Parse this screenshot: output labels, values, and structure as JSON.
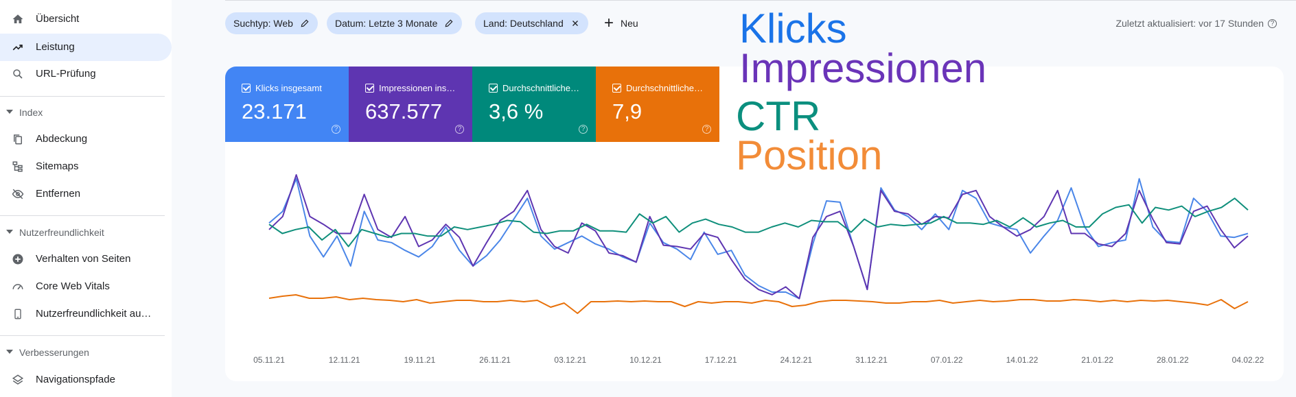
{
  "sidebar": {
    "items": [
      {
        "label": "Übersicht",
        "icon": "home-icon"
      },
      {
        "label": "Leistung",
        "icon": "trending-icon",
        "active": true
      },
      {
        "label": "URL-Prüfung",
        "icon": "search-icon"
      }
    ],
    "sections": [
      {
        "title": "Index",
        "items": [
          {
            "label": "Abdeckung",
            "icon": "copy-icon"
          },
          {
            "label": "Sitemaps",
            "icon": "sitemap-icon"
          },
          {
            "label": "Entfernen",
            "icon": "eye-off-icon"
          }
        ]
      },
      {
        "title": "Nutzerfreundlichkeit",
        "items": [
          {
            "label": "Verhalten von Seiten",
            "icon": "plus-circle-icon"
          },
          {
            "label": "Core Web Vitals",
            "icon": "gauge-icon"
          },
          {
            "label": "Nutzerfreundlichkeit au…",
            "icon": "smartphone-icon"
          }
        ]
      },
      {
        "title": "Verbesserungen",
        "items": [
          {
            "label": "Navigationspfade",
            "icon": "layers-icon"
          }
        ]
      }
    ]
  },
  "filters": [
    {
      "label": "Suchtyp: Web",
      "icon": "pencil-icon"
    },
    {
      "label": "Datum: Letzte 3 Monate",
      "icon": "pencil-icon"
    },
    {
      "label": "Land: Deutschland",
      "icon": "close-icon"
    }
  ],
  "new_label": "Neu",
  "updated_text": "Zuletzt aktualisiert: vor 17 Stunden",
  "metrics": [
    {
      "label": "Klicks insgesamt",
      "value": "23.171",
      "color": "#4285f4"
    },
    {
      "label": "Impressionen ins…",
      "value": "637.577",
      "color": "#5e35b1"
    },
    {
      "label": "Durchschnittliche…",
      "value": "3,6 %",
      "color": "#00897b"
    },
    {
      "label": "Durchschnittliche…",
      "value": "7,9",
      "color": "#e8710a"
    }
  ],
  "legend_overlay": {
    "clicks": "Klicks",
    "impressions": "Impressionen",
    "ctr": "CTR",
    "position": "Position"
  },
  "chart_data": {
    "type": "line",
    "x_ticks": [
      "05.11.21",
      "12.11.21",
      "19.11.21",
      "26.11.21",
      "03.12.21",
      "10.12.21",
      "17.12.21",
      "24.12.21",
      "31.12.21",
      "07.01.22",
      "14.01.22",
      "21.01.22",
      "28.01.22",
      "04.02.22"
    ],
    "series": [
      {
        "name": "Klicks",
        "color": "#4a86e8",
        "values": [
          63,
          72,
          97,
          53,
          37,
          53,
          30,
          72,
          50,
          48,
          42,
          37,
          45,
          60,
          42,
          30,
          38,
          50,
          66,
          82,
          53,
          43,
          48,
          53,
          47,
          43,
          37,
          33,
          63,
          48,
          43,
          35,
          56,
          39,
          42,
          23,
          15,
          10,
          10,
          5,
          47,
          80,
          79,
          45,
          12,
          90,
          73,
          68,
          58,
          70,
          58,
          88,
          82,
          63,
          60,
          58,
          40,
          53,
          65,
          90,
          60,
          45,
          48,
          50,
          97,
          60,
          49,
          48,
          82,
          72,
          53,
          52,
          55
        ]
      },
      {
        "name": "Impressionen",
        "color": "#5e35b1",
        "values": [
          58,
          68,
          100,
          68,
          62,
          55,
          55,
          85,
          58,
          52,
          68,
          45,
          50,
          62,
          52,
          30,
          48,
          65,
          72,
          88,
          58,
          45,
          40,
          63,
          57,
          40,
          38,
          33,
          68,
          46,
          45,
          43,
          55,
          52,
          35,
          20,
          12,
          8,
          14,
          5,
          52,
          68,
          72,
          45,
          12,
          88,
          72,
          70,
          62,
          68,
          67,
          85,
          88,
          68,
          60,
          53,
          58,
          68,
          88,
          55,
          55,
          47,
          45,
          55,
          88,
          66,
          48,
          47,
          72,
          76,
          58,
          44,
          53
        ]
      },
      {
        "name": "CTR",
        "color": "#0f8f7b",
        "values": [
          62,
          55,
          58,
          60,
          50,
          58,
          45,
          58,
          55,
          52,
          55,
          55,
          53,
          53,
          60,
          58,
          60,
          62,
          65,
          64,
          56,
          55,
          57,
          57,
          62,
          57,
          57,
          56,
          70,
          63,
          68,
          56,
          63,
          66,
          62,
          60,
          56,
          56,
          60,
          63,
          60,
          65,
          64,
          64,
          56,
          66,
          60,
          62,
          61,
          62,
          63,
          68,
          63,
          63,
          62,
          65,
          60,
          67,
          60,
          63,
          65,
          60,
          60,
          70,
          75,
          77,
          63,
          75,
          73,
          76,
          68,
          72,
          75,
          82,
          73
        ]
      },
      {
        "name": "Position",
        "color": "#e8710a",
        "values": [
          5.0,
          5.3,
          5.5,
          5.0,
          5.0,
          5.2,
          4.8,
          5.0,
          4.8,
          4.7,
          4.5,
          4.8,
          4.3,
          4.5,
          4.7,
          4.7,
          4.5,
          4.5,
          4.7,
          4.5,
          4.7,
          3.7,
          4.3,
          2.8,
          4.5,
          4.5,
          4.6,
          4.5,
          4.6,
          4.5,
          4.5,
          3.8,
          4.5,
          4.3,
          4.5,
          4.5,
          4.3,
          4.7,
          4.5,
          3.8,
          4.0,
          4.5,
          4.7,
          4.7,
          4.6,
          4.5,
          4.3,
          4.3,
          4.5,
          4.5,
          4.7,
          4.3,
          4.5,
          4.7,
          4.5,
          4.6,
          4.8,
          4.8,
          4.6,
          4.6,
          4.8,
          4.7,
          4.5,
          4.7,
          4.5,
          4.7,
          4.6,
          4.7,
          4.5,
          4.3,
          4.0,
          4.8,
          3.5,
          4.5
        ]
      }
    ],
    "grid": false,
    "legend": "none"
  }
}
